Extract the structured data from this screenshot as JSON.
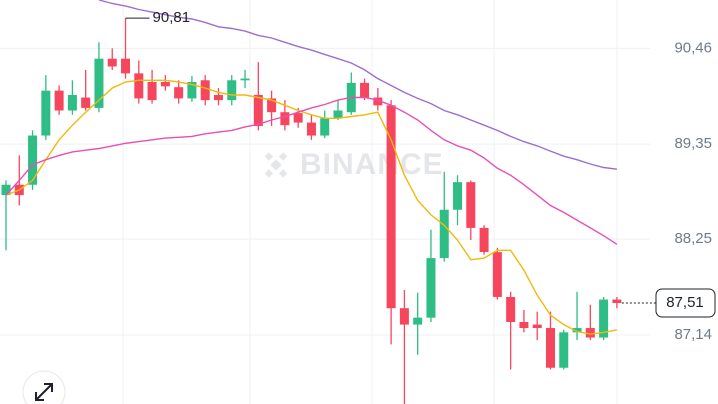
{
  "chart_data": {
    "type": "candlestick",
    "open": [
      88.76,
      88.88,
      88.88,
      89.45,
      89.97,
      89.74,
      89.89,
      89.77,
      90.34,
      90.34,
      90.17,
      90.07,
      90.07,
      90.01,
      89.88,
      90.09,
      89.92,
      89.86,
      90.09,
      89.92,
      89.88,
      89.72,
      89.71,
      89.6,
      89.45,
      89.65,
      89.72,
      90.06,
      89.89,
      89.8,
      87.45,
      87.26,
      87.34,
      88.03,
      88.59,
      88.91,
      88.38,
      88.1,
      87.58,
      87.29,
      87.26,
      87.22,
      86.76,
      87.17,
      87.22,
      87.11,
      87.55
    ],
    "high": [
      88.93,
      89.22,
      89.51,
      90.15,
      90.03,
      90.09,
      90.21,
      90.53,
      90.46,
      90.81,
      90.32,
      90.21,
      90.15,
      90.09,
      90.14,
      90.15,
      90.0,
      90.15,
      90.21,
      90.3,
      89.97,
      89.86,
      89.77,
      89.69,
      89.74,
      89.86,
      90.18,
      90.11,
      90.0,
      89.86,
      87.66,
      87.63,
      88.36,
      89.03,
      88.99,
      88.93,
      88.41,
      88.15,
      87.64,
      87.43,
      87.41,
      87.41,
      87.2,
      87.64,
      87.49,
      87.58,
      87.58
    ],
    "low": [
      88.12,
      88.64,
      88.82,
      89.4,
      89.69,
      89.69,
      89.74,
      89.72,
      90.21,
      90.11,
      89.82,
      89.82,
      89.97,
      89.82,
      89.84,
      89.8,
      89.8,
      89.8,
      90.0,
      89.51,
      89.56,
      89.51,
      89.54,
      89.4,
      89.42,
      89.63,
      89.69,
      89.86,
      89.74,
      87.03,
      86.34,
      86.91,
      87.29,
      87.99,
      88.41,
      88.24,
      88.07,
      87.55,
      86.74,
      87.17,
      87.08,
      86.74,
      86.74,
      87.08,
      87.08,
      87.08,
      87.45
    ],
    "close": [
      88.88,
      88.76,
      89.45,
      89.97,
      89.74,
      89.92,
      89.77,
      90.34,
      90.25,
      90.17,
      89.88,
      89.86,
      90.02,
      89.88,
      90.07,
      89.86,
      89.86,
      90.09,
      90.11,
      89.56,
      89.72,
      89.57,
      89.6,
      89.45,
      89.65,
      89.74,
      90.06,
      89.89,
      89.8,
      87.45,
      87.26,
      87.34,
      88.03,
      88.59,
      88.91,
      88.38,
      88.1,
      87.58,
      87.29,
      87.22,
      87.22,
      86.76,
      87.17,
      87.22,
      87.11,
      87.55,
      87.51
    ],
    "up_color": "#2ebd85",
    "down_color": "#f6465d",
    "lines": [
      {
        "color": "#f0b90b",
        "values": [
          88.76,
          88.82,
          88.93,
          89.17,
          89.4,
          89.57,
          89.72,
          89.86,
          90.0,
          90.07,
          90.09,
          90.09,
          90.09,
          90.07,
          90.04,
          90.0,
          89.95,
          89.92,
          89.92,
          89.89,
          89.86,
          89.8,
          89.74,
          89.69,
          89.65,
          89.65,
          89.67,
          89.69,
          89.72,
          89.4,
          88.99,
          88.7,
          88.53,
          88.41,
          88.24,
          88.01,
          88.03,
          88.12,
          88.12,
          87.89,
          87.6,
          87.37,
          87.26,
          87.18,
          87.15,
          87.17,
          87.2
        ]
      },
      {
        "color": "#e84fb5",
        "values": [
          88.76,
          88.93,
          89.11,
          89.17,
          89.22,
          89.26,
          89.28,
          89.3,
          89.33,
          89.36,
          89.38,
          89.4,
          89.42,
          89.43,
          89.44,
          89.47,
          89.49,
          89.51,
          89.55,
          89.58,
          89.63,
          89.67,
          89.72,
          89.77,
          89.81,
          89.86,
          89.89,
          89.89,
          89.86,
          89.8,
          89.72,
          89.63,
          89.51,
          89.4,
          89.33,
          89.28,
          89.19,
          89.07,
          88.99,
          88.88,
          88.76,
          88.64,
          88.56,
          88.47,
          88.38,
          88.29,
          88.19
        ]
      },
      {
        "color": "#9b6fd1",
        "values": [
          null,
          null,
          null,
          null,
          null,
          null,
          null,
          91.02,
          90.98,
          90.95,
          90.91,
          90.88,
          90.85,
          90.82,
          90.8,
          90.76,
          90.71,
          90.69,
          90.66,
          90.61,
          90.58,
          90.53,
          90.48,
          90.44,
          90.39,
          90.34,
          90.29,
          90.21,
          90.11,
          90.03,
          89.95,
          89.88,
          89.82,
          89.74,
          89.69,
          89.63,
          89.57,
          89.51,
          89.44,
          89.38,
          89.33,
          89.27,
          89.21,
          89.17,
          89.12,
          89.08,
          89.06
        ]
      }
    ],
    "ylim": [
      86.34,
      91.02
    ],
    "yticks": [
      {
        "value": 90.46,
        "label": "90,46"
      },
      {
        "value": 89.35,
        "label": "89,35"
      },
      {
        "value": 88.25,
        "label": "88,25"
      },
      {
        "value": 87.14,
        "label": "87,14"
      }
    ],
    "grid": true,
    "high_marker": {
      "value": 90.81,
      "label": "90,81"
    },
    "last_price": {
      "value": 87.51,
      "label": "87,51"
    },
    "watermark": "BINANCE"
  }
}
